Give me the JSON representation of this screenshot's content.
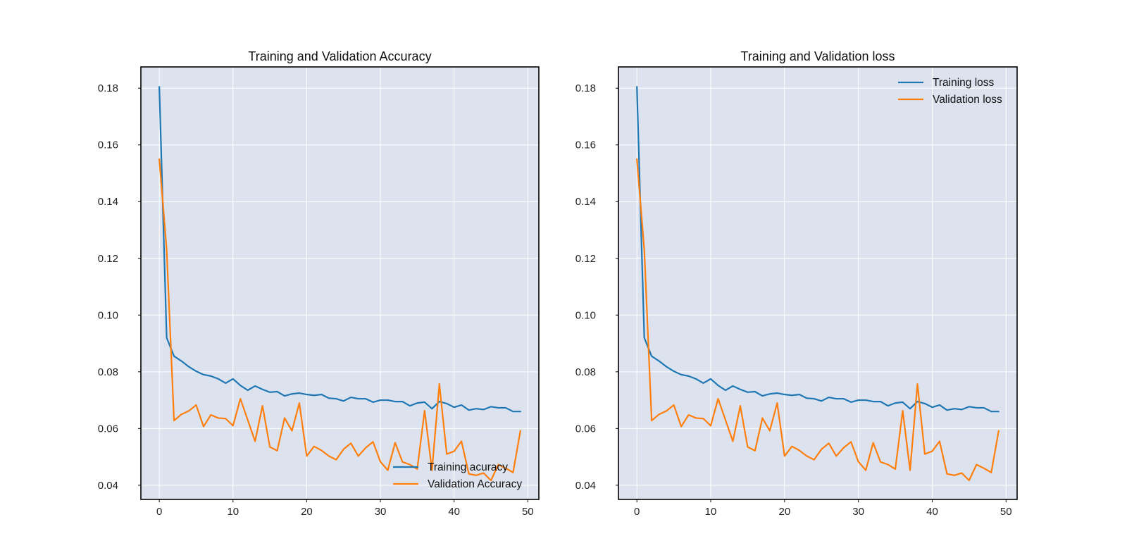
{
  "chart_data": [
    {
      "type": "line",
      "title": "Training and Validation Accuracy",
      "xlabel": "",
      "ylabel": "",
      "xlim": [
        -2.5,
        51.5
      ],
      "ylim": [
        0.035,
        0.1875
      ],
      "x_ticks": [
        0,
        10,
        20,
        30,
        40,
        50
      ],
      "y_ticks": [
        0.04,
        0.06,
        0.08,
        0.1,
        0.12,
        0.14,
        0.16,
        0.18
      ],
      "y_tick_labels": [
        "0.04",
        "0.06",
        "0.08",
        "0.10",
        "0.12",
        "0.14",
        "0.16",
        "0.18"
      ],
      "grid": true,
      "legend_position": "lower-right",
      "x": [
        0,
        1,
        2,
        3,
        4,
        5,
        6,
        7,
        8,
        9,
        10,
        11,
        12,
        13,
        14,
        15,
        16,
        17,
        18,
        19,
        20,
        21,
        22,
        23,
        24,
        25,
        26,
        27,
        28,
        29,
        30,
        31,
        32,
        33,
        34,
        35,
        36,
        37,
        38,
        39,
        40,
        41,
        42,
        43,
        44,
        45,
        46,
        47,
        48,
        49
      ],
      "series": [
        {
          "name": "Training acuracy",
          "color": "#1f77b4",
          "values": [
            0.1805,
            0.092,
            0.0855,
            0.0838,
            0.0818,
            0.0802,
            0.079,
            0.0785,
            0.0775,
            0.076,
            0.0775,
            0.0752,
            0.0735,
            0.075,
            0.0738,
            0.0728,
            0.073,
            0.0715,
            0.0722,
            0.0725,
            0.072,
            0.0717,
            0.072,
            0.0707,
            0.0705,
            0.0697,
            0.071,
            0.0705,
            0.0705,
            0.0693,
            0.07,
            0.07,
            0.0695,
            0.0695,
            0.068,
            0.069,
            0.0693,
            0.067,
            0.0695,
            0.0688,
            0.0675,
            0.0683,
            0.0665,
            0.067,
            0.0667,
            0.0677,
            0.0673,
            0.0673,
            0.066,
            0.066
          ]
        },
        {
          "name": "Validation Accuracy",
          "color": "#ff7f0e",
          "values": [
            0.155,
            0.123,
            0.0628,
            0.065,
            0.0662,
            0.0683,
            0.0607,
            0.0648,
            0.0637,
            0.0635,
            0.061,
            0.0705,
            0.063,
            0.0555,
            0.068,
            0.0535,
            0.0522,
            0.0637,
            0.0592,
            0.069,
            0.0503,
            0.0537,
            0.0523,
            0.0503,
            0.049,
            0.0527,
            0.0548,
            0.0503,
            0.0532,
            0.0553,
            0.0483,
            0.0453,
            0.055,
            0.0482,
            0.0473,
            0.0457,
            0.0663,
            0.0453,
            0.0757,
            0.051,
            0.052,
            0.0555,
            0.044,
            0.0435,
            0.0443,
            0.0417,
            0.0473,
            0.046,
            0.0445,
            0.0592
          ]
        }
      ]
    },
    {
      "type": "line",
      "title": "Training and Validation loss",
      "xlabel": "",
      "ylabel": "",
      "xlim": [
        -2.5,
        51.5
      ],
      "ylim": [
        0.035,
        0.1875
      ],
      "x_ticks": [
        0,
        10,
        20,
        30,
        40,
        50
      ],
      "y_ticks": [
        0.04,
        0.06,
        0.08,
        0.1,
        0.12,
        0.14,
        0.16,
        0.18
      ],
      "y_tick_labels": [
        "0.04",
        "0.06",
        "0.08",
        "0.10",
        "0.12",
        "0.14",
        "0.16",
        "0.18"
      ],
      "grid": true,
      "legend_position": "upper-right",
      "x": [
        0,
        1,
        2,
        3,
        4,
        5,
        6,
        7,
        8,
        9,
        10,
        11,
        12,
        13,
        14,
        15,
        16,
        17,
        18,
        19,
        20,
        21,
        22,
        23,
        24,
        25,
        26,
        27,
        28,
        29,
        30,
        31,
        32,
        33,
        34,
        35,
        36,
        37,
        38,
        39,
        40,
        41,
        42,
        43,
        44,
        45,
        46,
        47,
        48,
        49
      ],
      "series": [
        {
          "name": "Training loss",
          "color": "#1f77b4",
          "values": [
            0.1805,
            0.092,
            0.0855,
            0.0838,
            0.0818,
            0.0802,
            0.079,
            0.0785,
            0.0775,
            0.076,
            0.0775,
            0.0752,
            0.0735,
            0.075,
            0.0738,
            0.0728,
            0.073,
            0.0715,
            0.0722,
            0.0725,
            0.072,
            0.0717,
            0.072,
            0.0707,
            0.0705,
            0.0697,
            0.071,
            0.0705,
            0.0705,
            0.0693,
            0.07,
            0.07,
            0.0695,
            0.0695,
            0.068,
            0.069,
            0.0693,
            0.067,
            0.0695,
            0.0688,
            0.0675,
            0.0683,
            0.0665,
            0.067,
            0.0667,
            0.0677,
            0.0673,
            0.0673,
            0.066,
            0.066
          ]
        },
        {
          "name": "Validation loss",
          "color": "#ff7f0e",
          "values": [
            0.155,
            0.123,
            0.0628,
            0.065,
            0.0662,
            0.0683,
            0.0607,
            0.0648,
            0.0637,
            0.0635,
            0.061,
            0.0705,
            0.063,
            0.0555,
            0.068,
            0.0535,
            0.0522,
            0.0637,
            0.0592,
            0.069,
            0.0503,
            0.0537,
            0.0523,
            0.0503,
            0.049,
            0.0527,
            0.0548,
            0.0503,
            0.0532,
            0.0553,
            0.0483,
            0.0453,
            0.055,
            0.0482,
            0.0473,
            0.0457,
            0.0663,
            0.0453,
            0.0757,
            0.051,
            0.052,
            0.0555,
            0.044,
            0.0435,
            0.0443,
            0.0417,
            0.0473,
            0.046,
            0.0445,
            0.0592
          ]
        }
      ]
    }
  ]
}
